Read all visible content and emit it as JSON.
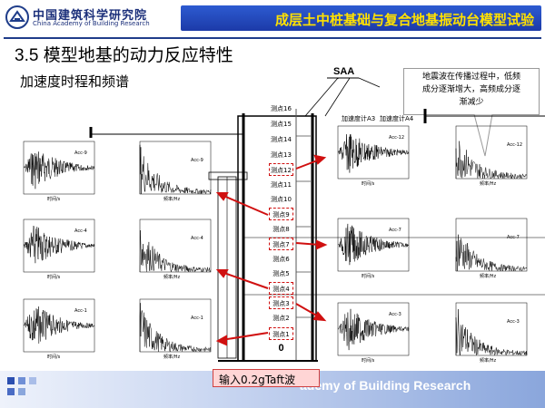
{
  "header": {
    "org_cn": "中国建筑科学研究院",
    "org_en": "China Academy of Building Research",
    "title": "成层土中桩基础与复合地基振动台模型试验"
  },
  "section_title": "3.5 模型地基的动力反应特性",
  "subtitle": "加速度时程和频谱",
  "saa_label": "SAA",
  "note": {
    "line1": "地震波在传播过程中，低频",
    "line2": "成分逐渐增大，高频成分逐",
    "line3": "渐减少"
  },
  "input_label": "输入0.2gTaft波",
  "footer_text": "ademy of Building Research",
  "tank_labels": {
    "a3": "加速度计A3",
    "a4": "加速度计A4"
  },
  "sensors": [
    "测点16",
    "测点15",
    "测点14",
    "测点13",
    "测点12",
    "测点11",
    "测点10",
    "测点9",
    "测点8",
    "测点7",
    "测点6",
    "测点5",
    "测点4",
    "测点3",
    "测点2",
    "测点1"
  ],
  "sensor_zero": "0",
  "plots": {
    "acc9": "Acc-9",
    "acc4": "Acc-4",
    "acc1": "Acc-1",
    "acc12": "Acc-12",
    "acc7": "Acc-7",
    "acc3": "Acc-3",
    "time_label": "时间/s",
    "freq_label": "频率/Hz",
    "acc_axis": "加速度/g",
    "amp_axis": "傅氏谱幅值(m/s)"
  },
  "colors": {
    "title_bg": "#1c3aa8",
    "title_text": "#ffe100",
    "arrow": "#d01010"
  }
}
